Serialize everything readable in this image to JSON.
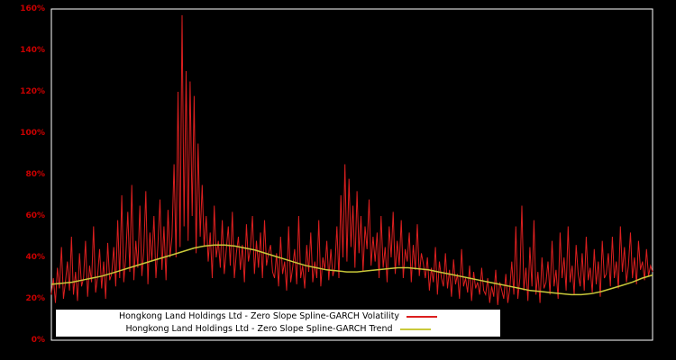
{
  "colors": {
    "background": "#000000",
    "plot_border": "#ffffff",
    "axis_label": "#cc0000",
    "volatility_line": "#dc1f1f",
    "trend_line": "#c9c93a",
    "legend_bg": "#ffffff",
    "legend_text": "#000000"
  },
  "chart_data": {
    "type": "line",
    "title": "",
    "xlabel": "",
    "ylabel": "",
    "ylim": [
      0,
      160
    ],
    "grid": false,
    "legend_position": "bottom-center",
    "y_ticks": [
      "0%",
      "20%",
      "40%",
      "60%",
      "80%",
      "100%",
      "120%",
      "140%",
      "160%"
    ],
    "series": [
      {
        "name": "Hongkong Land Holdings Ltd - Zero Slope Spline-GARCH Volatility",
        "color": "#dc1f1f",
        "values": [
          22,
          30,
          18,
          35,
          25,
          45,
          20,
          28,
          38,
          24,
          50,
          22,
          33,
          19,
          42,
          26,
          30,
          48,
          21,
          36,
          28,
          55,
          23,
          31,
          44,
          25,
          38,
          20,
          47,
          29,
          32,
          45,
          26,
          58,
          30,
          70,
          28,
          40,
          62,
          33,
          75,
          29,
          48,
          35,
          65,
          31,
          44,
          72,
          27,
          52,
          38,
          60,
          30,
          46,
          68,
          34,
          55,
          29,
          63,
          40,
          50,
          85,
          40,
          120,
          45,
          157,
          55,
          130,
          48,
          125,
          60,
          118,
          42,
          95,
          50,
          75,
          45,
          60,
          38,
          52,
          30,
          65,
          40,
          48,
          35,
          58,
          32,
          44,
          55,
          36,
          62,
          30,
          42,
          50,
          34,
          46,
          28,
          56,
          38,
          44,
          60,
          32,
          48,
          35,
          52,
          30,
          58,
          36,
          42,
          46,
          33,
          30,
          42,
          26,
          50,
          32,
          38,
          24,
          55,
          28,
          35,
          44,
          27,
          60,
          30,
          36,
          25,
          46,
          33,
          52,
          28,
          38,
          30,
          58,
          26,
          40,
          34,
          48,
          29,
          44,
          31,
          35,
          55,
          30,
          70,
          40,
          85,
          38,
          78,
          45,
          65,
          35,
          72,
          42,
          60,
          33,
          55,
          44,
          68,
          36,
          50,
          38,
          52,
          30,
          60,
          35,
          45,
          28,
          55,
          40,
          62,
          32,
          48,
          36,
          58,
          30,
          44,
          38,
          52,
          28,
          46,
          34,
          56,
          31,
          42,
          37,
          30,
          40,
          24,
          35,
          28,
          45,
          22,
          38,
          30,
          26,
          42,
          25,
          34,
          21,
          39,
          27,
          32,
          20,
          44,
          26,
          30,
          23,
          36,
          19,
          33,
          25,
          28,
          22,
          35,
          24,
          22,
          30,
          18,
          26,
          21,
          34,
          17,
          28,
          24,
          20,
          32,
          18,
          25,
          38,
          22,
          55,
          20,
          30,
          65,
          24,
          35,
          19,
          45,
          26,
          58,
          22,
          33,
          18,
          40,
          25,
          28,
          38,
          22,
          48,
          26,
          34,
          20,
          52,
          30,
          40,
          24,
          55,
          28,
          36,
          22,
          46,
          32,
          26,
          42,
          24,
          50,
          29,
          35,
          23,
          44,
          27,
          38,
          21,
          48,
          30,
          32,
          42,
          26,
          50,
          30,
          38,
          25,
          55,
          33,
          45,
          28,
          36,
          52,
          30,
          40,
          27,
          48,
          34,
          38,
          29,
          44,
          31,
          36,
          33
        ]
      },
      {
        "name": "Hongkong Land Holdings Ltd - Zero Slope Spline-GARCH Trend",
        "color": "#c9c93a",
        "values": [
          27,
          27.5,
          28,
          29,
          30,
          31,
          32.5,
          34,
          35.5,
          37,
          38.5,
          40,
          41.5,
          43,
          44.5,
          45.5,
          46,
          46,
          45.5,
          44.5,
          43.5,
          42,
          40.5,
          39,
          37.5,
          36,
          35,
          34,
          33.5,
          33,
          33,
          33.5,
          34,
          34.5,
          35,
          35,
          34.5,
          34,
          33,
          32,
          31,
          30,
          29,
          28,
          27,
          26,
          25,
          24,
          23.5,
          23,
          22.5,
          22,
          22,
          22.5,
          23.5,
          25,
          26.5,
          28,
          30,
          31.5
        ]
      }
    ]
  },
  "legend": {
    "volatility_label": "Hongkong Land Holdings Ltd - Zero Slope Spline-GARCH Volatility",
    "trend_label": "Hongkong Land Holdings Ltd - Zero Slope Spline-GARCH Trend"
  }
}
